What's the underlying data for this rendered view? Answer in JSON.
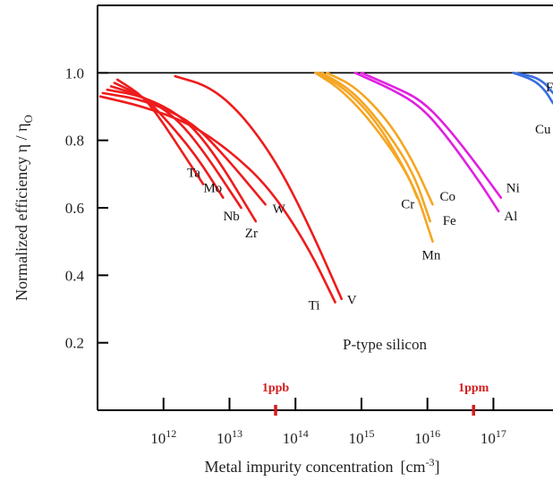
{
  "chart_data": {
    "type": "line",
    "title": "",
    "xlabel": "Metal impurity concentration",
    "xlabel_unit": "[cm",
    "xlabel_unit_exp": "-3",
    "xlabel_unit_close": "]",
    "ylabel_main": "Normalized efficiency  η / η",
    "ylabel_sub": "O",
    "x_scale": "log",
    "xlim": [
      100000000000.0,
      8e+17
    ],
    "ylim": [
      0.0,
      1.2
    ],
    "y_ticks": [
      "0.2",
      "0.4",
      "0.6",
      "0.8",
      "1.0"
    ],
    "x_ticks": [
      {
        "base": "10",
        "exp": "12"
      },
      {
        "base": "10",
        "exp": "13"
      },
      {
        "base": "10",
        "exp": "14"
      },
      {
        "base": "10",
        "exp": "15"
      },
      {
        "base": "10",
        "exp": "16"
      },
      {
        "base": "10",
        "exp": "17"
      }
    ],
    "annotation": "P-type silicon",
    "markers": [
      {
        "label": "1ppb",
        "x": 50000000000000.0
      },
      {
        "label": "1ppm",
        "x": 5e+16
      }
    ],
    "reference_line": 1.0,
    "colors": {
      "refractory": "#ee1c1c",
      "transition": "#f5a623",
      "nickel_group": "#e020e0",
      "copper": "#3a6fe0",
      "marker": "#d41c1c"
    },
    "series": [
      {
        "name": "Ta",
        "color_key": "refractory",
        "x": [
          200000000000.0,
          500000000000.0,
          1000000000000.0,
          2000000000000.0,
          4000000000000.0
        ],
        "y": [
          0.98,
          0.93,
          0.85,
          0.76,
          0.67
        ]
      },
      {
        "name": "Mo",
        "color_key": "refractory",
        "x": [
          180000000000.0,
          500000000000.0,
          1000000000000.0,
          3000000000000.0,
          8000000000000.0
        ],
        "y": [
          0.97,
          0.93,
          0.87,
          0.76,
          0.63
        ]
      },
      {
        "name": "Nb",
        "color_key": "refractory",
        "x": [
          160000000000.0,
          500000000000.0,
          1500000000000.0,
          4000000000000.0,
          15000000000000.0
        ],
        "y": [
          0.96,
          0.93,
          0.87,
          0.77,
          0.6
        ]
      },
      {
        "name": "Zr",
        "color_key": "refractory",
        "x": [
          140000000000.0,
          500000000000.0,
          2000000000000.0,
          6000000000000.0,
          25000000000000.0
        ],
        "y": [
          0.95,
          0.93,
          0.87,
          0.76,
          0.56
        ]
      },
      {
        "name": "W",
        "color_key": "refractory",
        "x": [
          120000000000.0,
          500000000000.0,
          2500000000000.0,
          8000000000000.0,
          35000000000000.0
        ],
        "y": [
          0.94,
          0.92,
          0.86,
          0.76,
          0.61
        ]
      },
      {
        "name": "Ti",
        "color_key": "refractory",
        "x": [
          110000000000.0,
          500000000000.0,
          2500000000000.0,
          10000000000000.0,
          40000000000000.0,
          150000000000000.0,
          400000000000000.0
        ],
        "y": [
          0.93,
          0.9,
          0.85,
          0.77,
          0.66,
          0.49,
          0.32
        ]
      },
      {
        "name": "V",
        "color_key": "refractory",
        "x": [
          1500000000000.0,
          5000000000000.0,
          15000000000000.0,
          50000000000000.0,
          150000000000000.0,
          500000000000000.0
        ],
        "y": [
          0.99,
          0.96,
          0.88,
          0.74,
          0.56,
          0.33
        ]
      },
      {
        "name": "Co",
        "color_key": "transition",
        "x": [
          300000000000000.0,
          800000000000000.0,
          2500000000000000.0,
          6000000000000000.0,
          1.2e+16
        ],
        "y": [
          1.0,
          0.96,
          0.86,
          0.74,
          0.61
        ]
      },
      {
        "name": "Fe",
        "color_key": "transition",
        "x": [
          250000000000000.0,
          700000000000000.0,
          2000000000000000.0,
          6000000000000000.0,
          1.1e+16
        ],
        "y": [
          1.0,
          0.95,
          0.85,
          0.71,
          0.56
        ]
      },
      {
        "name": "Cr",
        "color_key": "transition",
        "x": [
          220000000000000.0,
          600000000000000.0,
          1800000000000000.0,
          5000000000000000.0,
          7000000000000000.0
        ],
        "y": [
          1.0,
          0.95,
          0.85,
          0.7,
          0.63
        ]
      },
      {
        "name": "Mn",
        "color_key": "transition",
        "x": [
          200000000000000.0,
          500000000000000.0,
          1500000000000000.0,
          6000000000000000.0,
          1.2e+16
        ],
        "y": [
          1.0,
          0.95,
          0.85,
          0.68,
          0.5
        ]
      },
      {
        "name": "Ni",
        "color_key": "nickel_group",
        "x": [
          1000000000000000.0,
          3000000000000000.0,
          8000000000000000.0,
          2e+16,
          6e+16,
          1.3e+17
        ],
        "y": [
          1.0,
          0.96,
          0.92,
          0.84,
          0.72,
          0.63
        ]
      },
      {
        "name": "Al",
        "color_key": "nickel_group",
        "x": [
          800000000000000.0,
          3000000000000000.0,
          8000000000000000.0,
          2e+16,
          6e+16,
          1.2e+17
        ],
        "y": [
          1.0,
          0.95,
          0.9,
          0.81,
          0.68,
          0.59
        ]
      },
      {
        "name": "Cu",
        "color_key": "copper",
        "x": [
          2e+17,
          4e+17,
          6e+17,
          8e+17
        ],
        "y": [
          1.0,
          0.98,
          0.95,
          0.91
        ]
      },
      {
        "name": "F",
        "color_key": "copper",
        "x": [
          2e+17,
          4e+17,
          6e+17,
          8e+17
        ],
        "y": [
          1.0,
          0.99,
          0.97,
          0.94
        ]
      }
    ]
  }
}
